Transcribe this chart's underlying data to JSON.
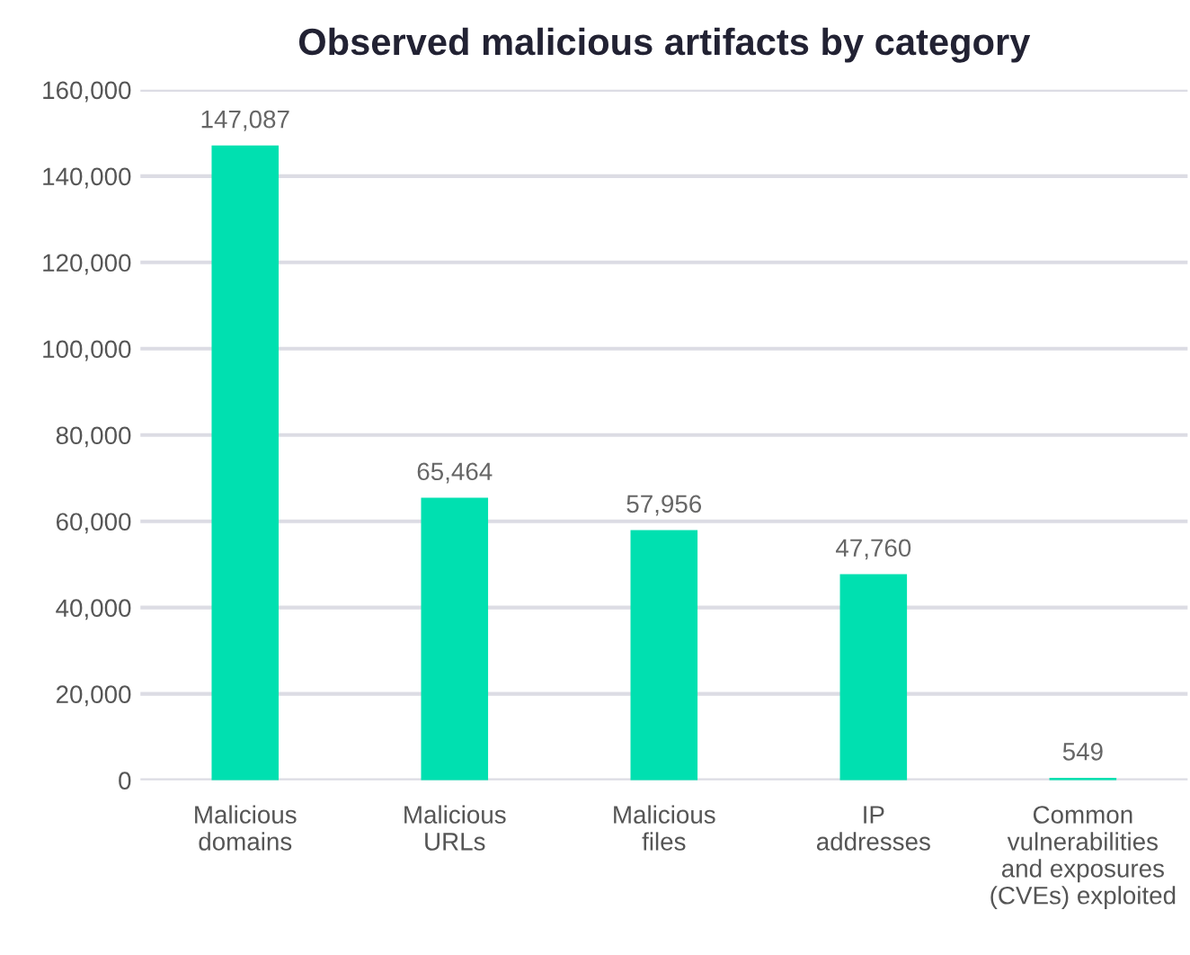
{
  "chart_data": {
    "type": "bar",
    "title": "Observed malicious artifacts by category",
    "categories": [
      "Malicious\ndomains",
      "Malicious\nURLs",
      "Malicious\nfiles",
      "IP\naddresses",
      "Common\nvulnerabilities\nand exposures\n(CVEs) exploited"
    ],
    "values": [
      147087,
      65464,
      57956,
      47760,
      549
    ],
    "color": "#00e0b0",
    "value_labels": [
      "147,087",
      "65,464",
      "57,956",
      "47,760",
      "549"
    ],
    "ylim": [
      0,
      160000
    ],
    "yticks": [
      {
        "value": 0,
        "label": "0"
      },
      {
        "value": 20000,
        "label": "20,000"
      },
      {
        "value": 40000,
        "label": "40,000"
      },
      {
        "value": 60000,
        "label": "60,000"
      },
      {
        "value": 80000,
        "label": "80,000"
      },
      {
        "value": 100000,
        "label": "100,000"
      },
      {
        "value": 120000,
        "label": "120,000"
      },
      {
        "value": 140000,
        "label": "140,000"
      },
      {
        "value": 160000,
        "label": "160,000"
      }
    ],
    "grid": "y"
  }
}
